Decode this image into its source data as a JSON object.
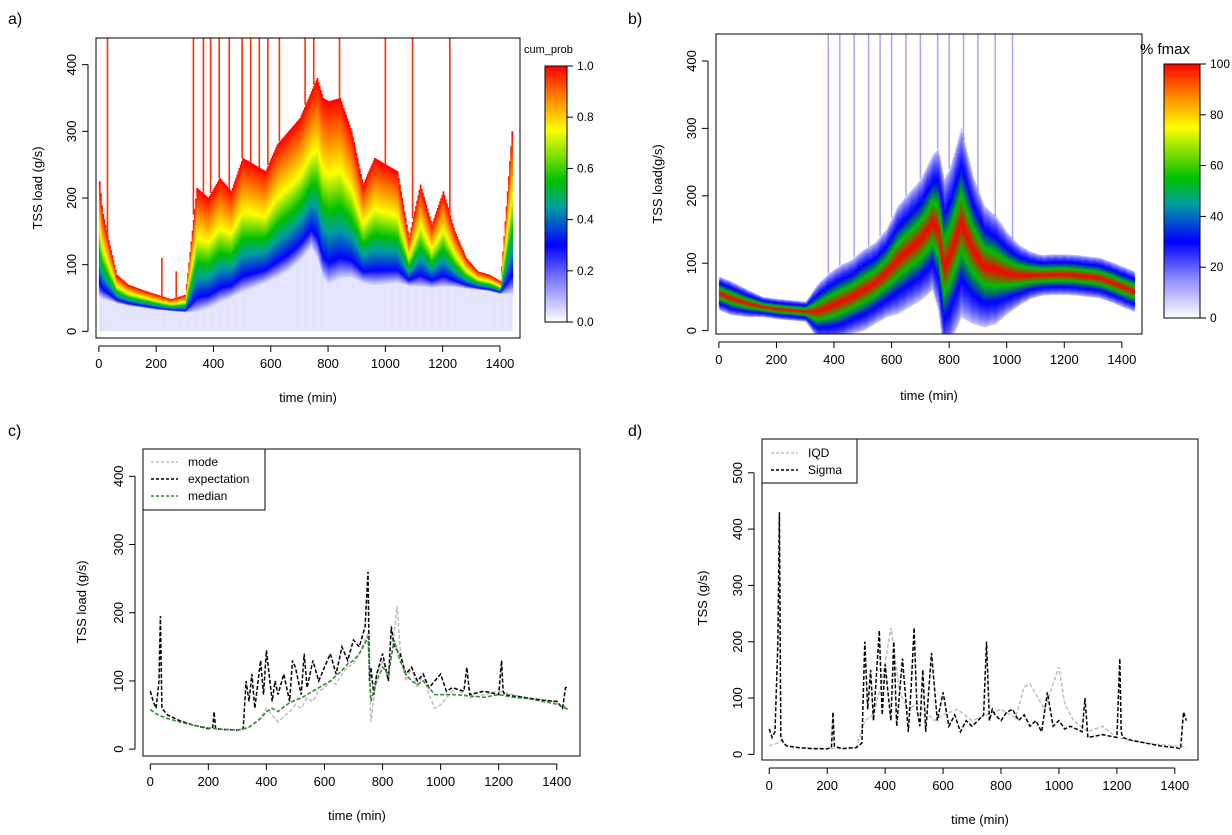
{
  "chart_data": [
    {
      "panel": "a)",
      "type": "heatmap",
      "xlabel": "time (min)",
      "ylabel": "TSS load (g/s)",
      "xlim": [
        -10,
        1470
      ],
      "ylim": [
        -10,
        440
      ],
      "xticks": [
        0,
        200,
        400,
        600,
        800,
        1000,
        1200,
        1400
      ],
      "yticks": [
        0,
        100,
        200,
        300,
        400
      ],
      "colorbar": {
        "title": "cum_prob",
        "range": [
          0.0,
          1.0
        ],
        "ticks": [
          "0.0",
          "0.2",
          "0.4",
          "0.6",
          "0.8",
          "1.0"
        ]
      },
      "colors": [
        "#ffffff",
        "#0000ff",
        "#00c000",
        "#ffff00",
        "#ff0000"
      ],
      "profile": {
        "x": [
          0,
          10,
          30,
          60,
          100,
          150,
          200,
          250,
          300,
          340,
          380,
          420,
          460,
          500,
          540,
          580,
          620,
          660,
          700,
          740,
          760,
          780,
          800,
          840,
          880,
          920,
          960,
          1000,
          1040,
          1080,
          1120,
          1160,
          1200,
          1240,
          1280,
          1320,
          1360,
          1400,
          1440
        ],
        "lower": [
          50,
          48,
          46,
          42,
          38,
          35,
          32,
          30,
          28,
          28,
          34,
          42,
          50,
          58,
          65,
          72,
          80,
          90,
          105,
          125,
          110,
          80,
          70,
          78,
          80,
          72,
          68,
          70,
          72,
          68,
          66,
          65,
          66,
          66,
          64,
          62,
          60,
          56,
          54
        ],
        "upper": [
          225,
          180,
          140,
          85,
          70,
          62,
          55,
          48,
          55,
          215,
          200,
          230,
          210,
          260,
          250,
          240,
          280,
          300,
          320,
          360,
          380,
          350,
          345,
          350,
          300,
          220,
          260,
          250,
          240,
          140,
          220,
          160,
          210,
          150,
          110,
          90,
          85,
          75,
          300
        ]
      },
      "spikes": [
        {
          "x": 30,
          "y": 440
        },
        {
          "x": 220,
          "y": 110
        },
        {
          "x": 270,
          "y": 90
        },
        {
          "x": 330,
          "y": 440
        },
        {
          "x": 365,
          "y": 440
        },
        {
          "x": 390,
          "y": 440
        },
        {
          "x": 420,
          "y": 440
        },
        {
          "x": 455,
          "y": 440
        },
        {
          "x": 500,
          "y": 440
        },
        {
          "x": 530,
          "y": 440
        },
        {
          "x": 560,
          "y": 440
        },
        {
          "x": 590,
          "y": 440
        },
        {
          "x": 630,
          "y": 440
        },
        {
          "x": 720,
          "y": 440
        },
        {
          "x": 750,
          "y": 440
        },
        {
          "x": 840,
          "y": 440
        },
        {
          "x": 1000,
          "y": 440
        },
        {
          "x": 1095,
          "y": 440
        },
        {
          "x": 1225,
          "y": 440
        }
      ]
    },
    {
      "panel": "b)",
      "type": "heatmap",
      "xlabel": "time (min)",
      "ylabel": "TSS load(g/s)",
      "xlim": [
        -10,
        1470
      ],
      "ylim": [
        -5,
        440
      ],
      "xticks": [
        0,
        200,
        400,
        600,
        800,
        1000,
        1200,
        1400
      ],
      "yticks": [
        0,
        100,
        200,
        300,
        400
      ],
      "colorbar": {
        "title": "% fmax",
        "range": [
          0,
          100
        ],
        "ticks": [
          "0",
          "20",
          "40",
          "60",
          "80",
          "100"
        ]
      },
      "colors": [
        "#ffffff",
        "#0000ff",
        "#00c000",
        "#ffff00",
        "#ff0000"
      ],
      "profile": {
        "x": [
          0,
          40,
          100,
          150,
          200,
          250,
          300,
          340,
          380,
          420,
          460,
          500,
          540,
          580,
          620,
          660,
          700,
          740,
          760,
          780,
          800,
          840,
          880,
          920,
          960,
          1000,
          1040,
          1080,
          1120,
          1160,
          1200,
          1240,
          1280,
          1320,
          1360,
          1400,
          1440
        ],
        "center": [
          55,
          48,
          40,
          35,
          32,
          30,
          28,
          28,
          35,
          42,
          50,
          60,
          70,
          85,
          105,
          120,
          135,
          160,
          150,
          95,
          110,
          160,
          120,
          95,
          90,
          85,
          82,
          82,
          82,
          83,
          83,
          82,
          80,
          78,
          72,
          65,
          58
        ],
        "spread": [
          25,
          25,
          20,
          15,
          15,
          15,
          15,
          40,
          50,
          55,
          55,
          60,
          60,
          65,
          80,
          85,
          90,
          100,
          120,
          130,
          130,
          140,
          110,
          90,
          80,
          60,
          45,
          35,
          30,
          30,
          30,
          30,
          30,
          30,
          30,
          30,
          30
        ]
      }
    },
    {
      "panel": "c)",
      "type": "line",
      "xlabel": "time (min)",
      "ylabel": "TSS load (g/s)",
      "xlim": [
        -25,
        1480
      ],
      "ylim": [
        -10,
        440
      ],
      "xticks": [
        0,
        200,
        400,
        600,
        800,
        1000,
        1200,
        1400
      ],
      "yticks": [
        0,
        100,
        200,
        300,
        400
      ],
      "legend": {
        "position": "top-left"
      },
      "series": [
        {
          "name": "mode",
          "color": "#bfbfbf",
          "x": [
            0,
            20,
            40,
            60,
            100,
            150,
            200,
            250,
            300,
            330,
            360,
            380,
            400,
            420,
            440,
            460,
            480,
            500,
            520,
            540,
            560,
            580,
            600,
            620,
            640,
            660,
            680,
            700,
            720,
            740,
            750,
            760,
            780,
            800,
            820,
            840,
            850,
            860,
            880,
            900,
            920,
            940,
            960,
            980,
            1000,
            1050,
            1100,
            1150,
            1200,
            1250,
            1300,
            1350,
            1400,
            1440
          ],
          "values": [
            58,
            52,
            48,
            45,
            40,
            35,
            31,
            29,
            28,
            30,
            38,
            45,
            60,
            50,
            40,
            48,
            55,
            65,
            60,
            75,
            70,
            85,
            90,
            100,
            95,
            110,
            120,
            125,
            140,
            160,
            170,
            40,
            110,
            130,
            100,
            170,
            210,
            150,
            100,
            120,
            90,
            110,
            80,
            60,
            65,
            90,
            75,
            80,
            85,
            80,
            75,
            72,
            68,
            60
          ]
        },
        {
          "name": "expectation",
          "color": "#000000",
          "x": [
            0,
            10,
            20,
            30,
            35,
            40,
            50,
            60,
            100,
            150,
            200,
            215,
            220,
            225,
            250,
            300,
            320,
            330,
            340,
            350,
            360,
            380,
            390,
            400,
            420,
            430,
            440,
            460,
            480,
            490,
            500,
            520,
            530,
            540,
            560,
            580,
            600,
            620,
            640,
            660,
            680,
            700,
            720,
            740,
            750,
            755,
            760,
            770,
            780,
            800,
            820,
            830,
            840,
            860,
            880,
            900,
            920,
            940,
            960,
            980,
            1000,
            1020,
            1040,
            1080,
            1090,
            1100,
            1150,
            1200,
            1210,
            1215,
            1220,
            1250,
            1300,
            1350,
            1400,
            1420,
            1430,
            1440
          ],
          "values": [
            85,
            70,
            60,
            100,
            195,
            60,
            55,
            50,
            42,
            35,
            30,
            32,
            55,
            30,
            29,
            28,
            30,
            100,
            70,
            110,
            60,
            130,
            80,
            145,
            70,
            100,
            80,
            110,
            70,
            130,
            120,
            80,
            140,
            90,
            130,
            100,
            120,
            140,
            110,
            150,
            130,
            160,
            150,
            180,
            260,
            100,
            120,
            80,
            110,
            140,
            100,
            180,
            150,
            140,
            110,
            120,
            100,
            110,
            90,
            100,
            110,
            85,
            90,
            85,
            120,
            80,
            85,
            80,
            130,
            85,
            80,
            78,
            75,
            72,
            70,
            60,
            90,
            92
          ]
        },
        {
          "name": "median",
          "color": "#2e8b2e",
          "x": [
            0,
            20,
            40,
            60,
            100,
            150,
            200,
            250,
            300,
            340,
            380,
            400,
            420,
            440,
            460,
            480,
            500,
            520,
            540,
            560,
            580,
            600,
            620,
            640,
            660,
            680,
            700,
            720,
            740,
            750,
            760,
            780,
            800,
            820,
            840,
            860,
            880,
            900,
            920,
            940,
            960,
            980,
            1000,
            1050,
            1100,
            1150,
            1200,
            1250,
            1300,
            1350,
            1400,
            1440
          ],
          "values": [
            58,
            52,
            48,
            45,
            40,
            35,
            31,
            29,
            28,
            32,
            45,
            55,
            60,
            55,
            62,
            68,
            72,
            75,
            80,
            85,
            90,
            95,
            100,
            108,
            115,
            125,
            130,
            140,
            155,
            165,
            70,
            100,
            120,
            110,
            160,
            130,
            110,
            100,
            95,
            100,
            90,
            80,
            80,
            80,
            78,
            76,
            80,
            76,
            74,
            70,
            66,
            58
          ]
        }
      ]
    },
    {
      "panel": "d)",
      "type": "line",
      "xlabel": "time (min)",
      "ylabel": "TSS (g/s)",
      "xlim": [
        -25,
        1480
      ],
      "ylim": [
        -10,
        560
      ],
      "xticks": [
        0,
        200,
        400,
        600,
        800,
        1000,
        1200,
        1400
      ],
      "yticks": [
        0,
        100,
        200,
        300,
        400,
        500
      ],
      "legend": {
        "position": "top-left"
      },
      "series": [
        {
          "name": "IQD",
          "color": "#bfbfbf",
          "x": [
            0,
            30,
            40,
            60,
            100,
            200,
            300,
            330,
            360,
            390,
            420,
            450,
            480,
            510,
            540,
            570,
            600,
            650,
            700,
            750,
            800,
            850,
            880,
            900,
            950,
            1000,
            1020,
            1050,
            1100,
            1150,
            1200,
            1300,
            1400,
            1440
          ],
          "values": [
            15,
            20,
            25,
            15,
            12,
            10,
            12,
            60,
            70,
            130,
            225,
            110,
            80,
            90,
            75,
            60,
            70,
            80,
            60,
            70,
            80,
            65,
            120,
            125,
            80,
            155,
            90,
            60,
            40,
            50,
            30,
            20,
            15,
            12
          ]
        },
        {
          "name": "Sigma",
          "color": "#000000",
          "x": [
            0,
            10,
            20,
            30,
            35,
            40,
            50,
            60,
            100,
            150,
            200,
            215,
            220,
            225,
            250,
            300,
            320,
            330,
            340,
            350,
            360,
            380,
            390,
            400,
            420,
            430,
            440,
            460,
            480,
            490,
            500,
            510,
            520,
            530,
            540,
            560,
            580,
            600,
            620,
            640,
            660,
            680,
            700,
            720,
            740,
            750,
            760,
            770,
            780,
            800,
            820,
            840,
            860,
            880,
            900,
            920,
            940,
            960,
            980,
            1000,
            1020,
            1040,
            1080,
            1090,
            1100,
            1150,
            1200,
            1210,
            1215,
            1220,
            1250,
            1300,
            1350,
            1400,
            1420,
            1430,
            1440
          ],
          "values": [
            45,
            30,
            40,
            200,
            430,
            30,
            20,
            15,
            12,
            10,
            10,
            12,
            75,
            15,
            10,
            12,
            20,
            200,
            80,
            150,
            60,
            220,
            70,
            160,
            60,
            200,
            50,
            170,
            40,
            120,
            225,
            80,
            50,
            150,
            40,
            180,
            60,
            110,
            50,
            70,
            40,
            60,
            50,
            60,
            70,
            200,
            60,
            80,
            70,
            60,
            75,
            80,
            60,
            70,
            50,
            60,
            40,
            110,
            50,
            60,
            45,
            50,
            40,
            100,
            30,
            35,
            30,
            170,
            40,
            30,
            25,
            20,
            15,
            12,
            10,
            75,
            60
          ]
        }
      ]
    }
  ],
  "panels": {
    "a": {
      "label": "a)",
      "xlabel": "time (min)",
      "ylabel": "TSS load (g/s)",
      "cb_title": "cum_prob"
    },
    "b": {
      "label": "b)",
      "xlabel": "time (min)",
      "ylabel": "TSS load(g/s)",
      "cb_title": "% fmax"
    },
    "c": {
      "label": "c)",
      "xlabel": "time (min)",
      "ylabel": "TSS load (g/s)",
      "legend": [
        "mode",
        "expectation",
        "median"
      ]
    },
    "d": {
      "label": "d)",
      "xlabel": "time (min)",
      "ylabel": "TSS (g/s)",
      "legend": [
        "IQD",
        "Sigma"
      ]
    }
  }
}
